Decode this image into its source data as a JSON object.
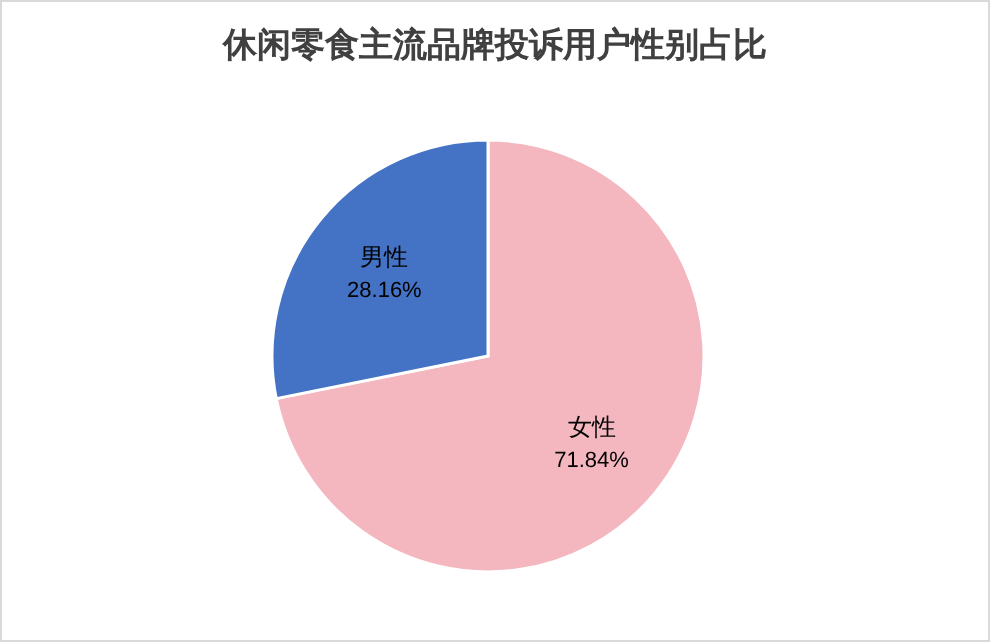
{
  "chart_data": {
    "type": "pie",
    "title": "休闲零食主流品牌投诉用户性别占比",
    "categories": [
      "女性",
      "男性"
    ],
    "values": [
      71.84,
      28.16
    ],
    "colors": [
      "#f4b6bf",
      "#4472c4"
    ],
    "value_labels": [
      "71.84%",
      "28.16%"
    ]
  }
}
